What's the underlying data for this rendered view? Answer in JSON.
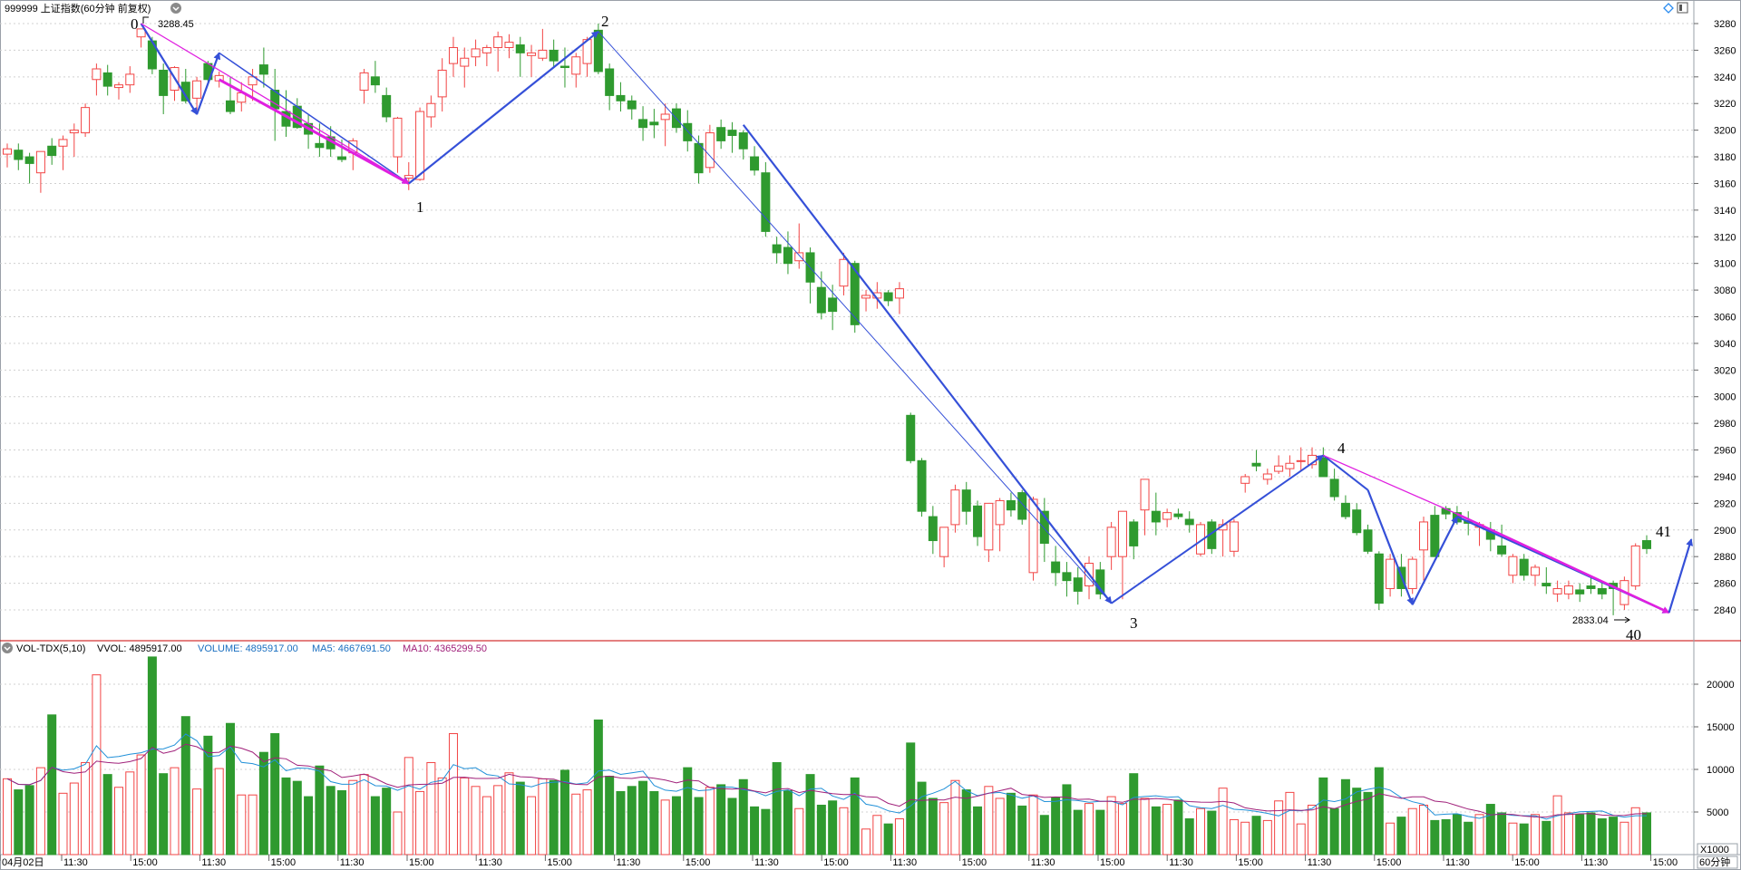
{
  "header": {
    "title": "999999 上证指数(60分钟 前复权)",
    "restore_icon": "diamond-icon",
    "window_icon": "window-icon"
  },
  "volume_header": {
    "indicator": "VOL-TDX(5,10)",
    "vvol": "VVOL: 4895917.00",
    "volume": "VOLUME: 4895917.00",
    "ma5": "MA5: 4667691.50",
    "ma10": "MA10: 4365299.50"
  },
  "price_axis": {
    "labels": [
      "3280",
      "3260",
      "3240",
      "3220",
      "3200",
      "3180",
      "3160",
      "3140",
      "3120",
      "3100",
      "3080",
      "3060",
      "3040",
      "3020",
      "3000",
      "2980",
      "2960",
      "2940",
      "2920",
      "2900",
      "2880",
      "2860",
      "2840"
    ]
  },
  "volume_axis": {
    "labels": [
      "20000",
      "15000",
      "10000",
      "5000"
    ],
    "unit": "X1000"
  },
  "time_axis": {
    "labels": [
      "04月02日",
      "11:30",
      "15:00",
      "11:30",
      "15:00",
      "11:30",
      "15:00",
      "11:30",
      "15:00",
      "11:30",
      "15:00",
      "11:30",
      "15:00",
      "11:30",
      "15:00",
      "11:30",
      "15:00",
      "11:30",
      "15:00",
      "11:30",
      "15:00",
      "11:30",
      "15:00",
      "11:30",
      "15:00"
    ],
    "period": "60分钟"
  },
  "annotations": {
    "high_value": "3288.45",
    "low_value": "2833.04",
    "waves": [
      "0",
      "1",
      "2",
      "3",
      "4",
      "40",
      "41"
    ]
  },
  "colors": {
    "up": "#f24545",
    "down": "#2f9a2f",
    "wave": "#3550d8",
    "wave_sub": "#e020e0",
    "ma5": "#2090d8",
    "ma10": "#a0207a"
  },
  "chart_data": {
    "type": "candlestick",
    "y_range": [
      2830,
      3290
    ],
    "volume_range": [
      0,
      23500
    ],
    "bars": [
      [
        3182,
        3190,
        3172,
        3186,
        8900
      ],
      [
        3185,
        3190,
        3170,
        3178,
        7600
      ],
      [
        3180,
        3183,
        3160,
        3175,
        8100
      ],
      [
        3168,
        3183,
        3153,
        3184,
        10200
      ],
      [
        3188,
        3194,
        3174,
        3181,
        16400
      ],
      [
        3188,
        3196,
        3170,
        3193,
        7200
      ],
      [
        3198,
        3205,
        3180,
        3200,
        8400
      ],
      [
        3198,
        3220,
        3195,
        3217,
        10800
      ],
      [
        3238,
        3250,
        3226,
        3246,
        21100
      ],
      [
        3243,
        3249,
        3226,
        3233,
        9400
      ],
      [
        3232,
        3236,
        3223,
        3234,
        7900
      ],
      [
        3234,
        3248,
        3228,
        3242,
        9700
      ],
      [
        3270,
        3276,
        3262,
        3276,
        11700
      ],
      [
        3267,
        3270,
        3242,
        3246,
        23200
      ],
      [
        3245,
        3250,
        3212,
        3226,
        9500
      ],
      [
        3230,
        3248,
        3222,
        3247,
        10200
      ],
      [
        3236,
        3246,
        3220,
        3222,
        16200
      ],
      [
        3224,
        3240,
        3215,
        3237,
        7700
      ],
      [
        3250,
        3252,
        3236,
        3238,
        13900
      ],
      [
        3237,
        3244,
        3232,
        3241,
        10100
      ],
      [
        3222,
        3240,
        3212,
        3214,
        15400
      ],
      [
        3221,
        3236,
        3214,
        3228,
        7000
      ],
      [
        3234,
        3246,
        3222,
        3240,
        7000
      ],
      [
        3249,
        3262,
        3232,
        3242,
        12000
      ],
      [
        3230,
        3246,
        3192,
        3216,
        14200
      ],
      [
        3214,
        3230,
        3195,
        3203,
        9000
      ],
      [
        3218,
        3224,
        3201,
        3202,
        8600
      ],
      [
        3205,
        3212,
        3186,
        3197,
        6800
      ],
      [
        3190,
        3205,
        3180,
        3187,
        10400
      ],
      [
        3195,
        3203,
        3180,
        3186,
        8000
      ],
      [
        3180,
        3193,
        3176,
        3178,
        7500
      ],
      [
        3183,
        3194,
        3170,
        3192,
        8700
      ],
      [
        3230,
        3246,
        3220,
        3243,
        9400
      ],
      [
        3240,
        3252,
        3228,
        3234,
        6800
      ],
      [
        3226,
        3232,
        3206,
        3210,
        7800
      ],
      [
        3180,
        3210,
        3168,
        3209,
        5000
      ],
      [
        3164,
        3176,
        3155,
        3166,
        11400
      ],
      [
        3163,
        3217,
        3162,
        3214,
        7400
      ],
      [
        3210,
        3226,
        3202,
        3220,
        10800
      ],
      [
        3225,
        3254,
        3214,
        3245,
        9000
      ],
      [
        3250,
        3270,
        3240,
        3262,
        14200
      ],
      [
        3248,
        3262,
        3232,
        3254,
        9000
      ],
      [
        3255,
        3268,
        3248,
        3261,
        8000
      ],
      [
        3258,
        3264,
        3248,
        3262,
        6800
      ],
      [
        3262,
        3274,
        3244,
        3270,
        8100
      ],
      [
        3262,
        3272,
        3254,
        3266,
        9600
      ],
      [
        3264,
        3270,
        3240,
        3258,
        8500
      ],
      [
        3256,
        3264,
        3240,
        3258,
        6800
      ],
      [
        3254,
        3276,
        3252,
        3260,
        8900
      ],
      [
        3260,
        3268,
        3247,
        3252,
        8700
      ],
      [
        3248,
        3262,
        3232,
        3247,
        9900
      ],
      [
        3242,
        3258,
        3232,
        3255,
        7100
      ],
      [
        3250,
        3270,
        3240,
        3268,
        7600
      ],
      [
        3275,
        3280,
        3242,
        3244,
        15800
      ],
      [
        3246,
        3250,
        3215,
        3226,
        9200
      ],
      [
        3226,
        3236,
        3214,
        3222,
        7400
      ],
      [
        3222,
        3226,
        3208,
        3216,
        8000
      ],
      [
        3208,
        3218,
        3192,
        3202,
        8600
      ],
      [
        3206,
        3216,
        3194,
        3204,
        7400
      ],
      [
        3208,
        3220,
        3188,
        3212,
        6400
      ],
      [
        3216,
        3220,
        3198,
        3202,
        6800
      ],
      [
        3205,
        3215,
        3184,
        3192,
        10200
      ],
      [
        3190,
        3196,
        3160,
        3168,
        6700
      ],
      [
        3172,
        3204,
        3168,
        3198,
        7900
      ],
      [
        3202,
        3208,
        3186,
        3192,
        8200
      ],
      [
        3200,
        3206,
        3183,
        3196,
        6600
      ],
      [
        3198,
        3200,
        3178,
        3186,
        8800
      ],
      [
        3180,
        3188,
        3166,
        3170,
        5600
      ],
      [
        3168,
        3176,
        3120,
        3124,
        5300
      ],
      [
        3114,
        3120,
        3100,
        3108,
        10800
      ],
      [
        3112,
        3124,
        3092,
        3100,
        7500
      ],
      [
        3102,
        3130,
        3096,
        3108,
        5400
      ],
      [
        3108,
        3112,
        3070,
        3086,
        9400
      ],
      [
        3082,
        3094,
        3058,
        3063,
        5800
      ],
      [
        3074,
        3084,
        3050,
        3064,
        6300
      ],
      [
        3083,
        3108,
        3076,
        3103,
        5500
      ],
      [
        3100,
        3102,
        3048,
        3054,
        9000
      ],
      [
        3074,
        3080,
        3064,
        3076,
        3000
      ],
      [
        3074,
        3086,
        3066,
        3078,
        4600
      ],
      [
        3078,
        3080,
        3068,
        3072,
        3600
      ],
      [
        3074,
        3086,
        3062,
        3081,
        4200
      ],
      [
        2986,
        2988,
        2950,
        2952,
        13100
      ],
      [
        2952,
        2954,
        2910,
        2914,
        8500
      ],
      [
        2910,
        2918,
        2882,
        2892,
        6600
      ],
      [
        2880,
        2892,
        2872,
        2902,
        6100
      ],
      [
        2904,
        2934,
        2898,
        2930,
        8700
      ],
      [
        2930,
        2936,
        2904,
        2914,
        7600
      ],
      [
        2918,
        2922,
        2888,
        2895,
        5600
      ],
      [
        2885,
        2898,
        2876,
        2920,
        8000
      ],
      [
        2904,
        2924,
        2884,
        2922,
        6600
      ],
      [
        2922,
        2928,
        2910,
        2915,
        7200
      ],
      [
        2928,
        2930,
        2904,
        2908,
        5700
      ],
      [
        2868,
        2925,
        2862,
        2923,
        7000
      ],
      [
        2914,
        2924,
        2876,
        2890,
        4600
      ],
      [
        2876,
        2888,
        2858,
        2868,
        6700
      ],
      [
        2868,
        2876,
        2850,
        2862,
        8200
      ],
      [
        2864,
        2872,
        2844,
        2854,
        5200
      ],
      [
        2858,
        2880,
        2848,
        2875,
        6000
      ],
      [
        2870,
        2876,
        2848,
        2852,
        5200
      ],
      [
        2880,
        2906,
        2870,
        2902,
        6800
      ],
      [
        2880,
        2904,
        2848,
        2914,
        6000
      ],
      [
        2906,
        2908,
        2878,
        2888,
        9500
      ],
      [
        2915,
        2934,
        2896,
        2938,
        6600
      ],
      [
        2914,
        2928,
        2896,
        2906,
        5600
      ],
      [
        2908,
        2916,
        2902,
        2913,
        5900
      ],
      [
        2912,
        2916,
        2908,
        2910,
        6400
      ],
      [
        2908,
        2914,
        2898,
        2904,
        4200
      ],
      [
        2882,
        2906,
        2880,
        2904,
        5400
      ],
      [
        2906,
        2908,
        2882,
        2886,
        5100
      ],
      [
        2900,
        2908,
        2880,
        2904,
        7800
      ],
      [
        2884,
        2908,
        2880,
        2906,
        4100
      ],
      [
        2935,
        2942,
        2928,
        2940,
        3800
      ],
      [
        2950,
        2960,
        2944,
        2948,
        4500
      ],
      [
        2938,
        2946,
        2934,
        2942,
        4000
      ],
      [
        2944,
        2956,
        2942,
        2948,
        6300
      ],
      [
        2946,
        2956,
        2940,
        2950,
        7300
      ],
      [
        2952,
        2962,
        2944,
        2952,
        3600
      ],
      [
        2949,
        2962,
        2946,
        2956,
        5800
      ],
      [
        2954,
        2962,
        2940,
        2940,
        9000
      ],
      [
        2938,
        2946,
        2922,
        2925,
        5400
      ],
      [
        2920,
        2926,
        2908,
        2910,
        8800
      ],
      [
        2915,
        2920,
        2896,
        2898,
        7800
      ],
      [
        2900,
        2904,
        2882,
        2884,
        7300
      ],
      [
        2882,
        2884,
        2840,
        2845,
        10200
      ],
      [
        2856,
        2882,
        2850,
        2878,
        3700
      ],
      [
        2872,
        2882,
        2850,
        2856,
        4400
      ],
      [
        2856,
        2880,
        2852,
        2878,
        5400
      ],
      [
        2885,
        2910,
        2862,
        2906,
        5800
      ],
      [
        2911,
        2918,
        2880,
        2880,
        4000
      ],
      [
        2916,
        2918,
        2908,
        2912,
        4100
      ],
      [
        2913,
        2918,
        2904,
        2906,
        4700
      ],
      [
        2907,
        2914,
        2896,
        2905,
        3800
      ],
      [
        2902,
        2906,
        2888,
        2904,
        4700
      ],
      [
        2900,
        2906,
        2884,
        2893,
        5900
      ],
      [
        2888,
        2904,
        2880,
        2882,
        4900
      ],
      [
        2866,
        2882,
        2860,
        2880,
        3700
      ],
      [
        2878,
        2882,
        2862,
        2866,
        3600
      ],
      [
        2866,
        2874,
        2858,
        2872,
        4700
      ],
      [
        2860,
        2872,
        2852,
        2858,
        3900
      ],
      [
        2852,
        2862,
        2846,
        2856,
        6900
      ],
      [
        2852,
        2862,
        2848,
        2858,
        4900
      ],
      [
        2855,
        2860,
        2846,
        2852,
        4700
      ],
      [
        2858,
        2864,
        2852,
        2856,
        4900
      ],
      [
        2856,
        2862,
        2848,
        2852,
        4200
      ],
      [
        2860,
        2862,
        2836,
        2856,
        4400
      ],
      [
        2844,
        2865,
        2840,
        2862,
        3800
      ],
      [
        2858,
        2890,
        2855,
        2888,
        5500
      ],
      [
        2892,
        2896,
        2882,
        2886,
        4900
      ]
    ]
  }
}
